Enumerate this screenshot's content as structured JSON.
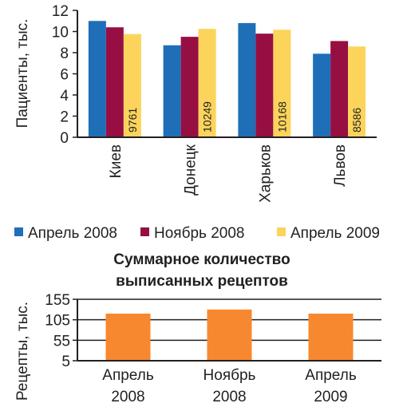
{
  "chart_data": [
    {
      "type": "bar",
      "ylabel": "Пациенты, тыс.",
      "ylim": [
        0,
        12
      ],
      "yticks": [
        "0",
        "2",
        "4",
        "6",
        "8",
        "10",
        "12"
      ],
      "categories": [
        "Киев",
        "Донецк",
        "Харьков",
        "Львов"
      ],
      "series": [
        {
          "name": "Апрель 2008",
          "color": "#1e6fb8",
          "values": [
            11.0,
            8.7,
            10.8,
            7.9
          ]
        },
        {
          "name": "Ноябрь 2008",
          "color": "#970e43",
          "values": [
            10.4,
            9.5,
            9.8,
            9.1
          ]
        },
        {
          "name": "Апрель 2009",
          "color": "#fcd45c",
          "values": [
            9.761,
            10.249,
            10.168,
            8.586
          ],
          "data_labels": [
            "9761",
            "10249",
            "10168",
            "8586"
          ]
        }
      ],
      "legend_position": "bottom"
    },
    {
      "type": "bar",
      "title_lines": [
        "Суммарное количество",
        "выписанных рецептов"
      ],
      "ylabel": "Рецепты, тыс.",
      "ylim": [
        5,
        155
      ],
      "yticks": [
        "5",
        "55",
        "105",
        "155"
      ],
      "categories": [
        [
          "Апрель",
          "2008"
        ],
        [
          "Ноябрь",
          "2008"
        ],
        [
          "Апрель",
          "2009"
        ]
      ],
      "color": "#f7882f",
      "values": [
        120,
        130,
        120
      ]
    }
  ]
}
